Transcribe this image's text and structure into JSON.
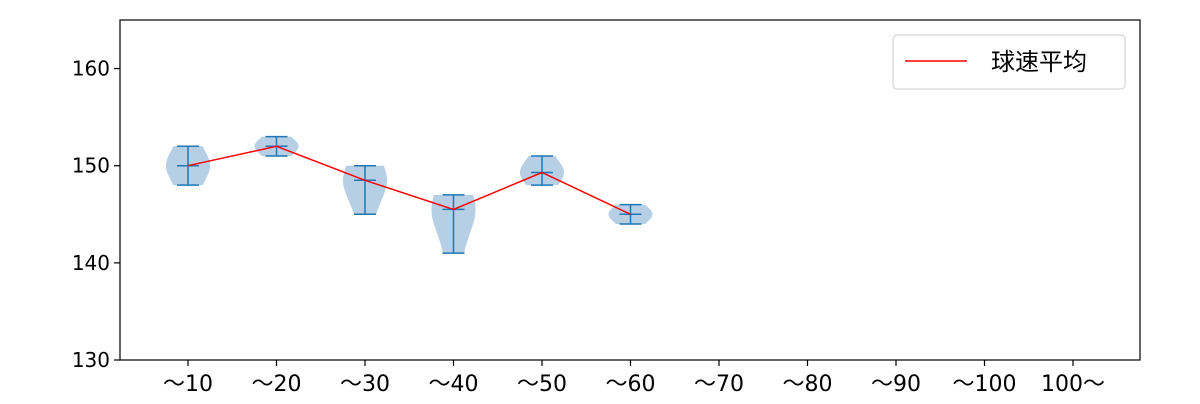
{
  "chart_data": {
    "type": "violin",
    "title": "",
    "xlabel": "",
    "ylabel": "",
    "categories": [
      "～10",
      "～20",
      "～30",
      "～40",
      "～50",
      "～60",
      "～70",
      "～80",
      "～90",
      "～100",
      "100～"
    ],
    "ylim": [
      130,
      165
    ],
    "yticks": [
      130,
      140,
      150,
      160
    ],
    "grid": false,
    "legend": {
      "position": "top-right",
      "entries": [
        "球速平均"
      ]
    },
    "colors": {
      "mean_line": "#ff0000",
      "violin_fill": "#9dbfdc",
      "whisker": "#1f77b4",
      "axis": "#000000"
    },
    "series": [
      {
        "name": "球速平均",
        "values": [
          150.0,
          152.0,
          148.5,
          145.5,
          149.3,
          145.0,
          null,
          null,
          null,
          null,
          null
        ]
      }
    ],
    "distributions": [
      {
        "category": "～10",
        "min": 148,
        "max": 152,
        "mean": 150.0
      },
      {
        "category": "～20",
        "min": 151,
        "max": 153,
        "mean": 152.0
      },
      {
        "category": "～30",
        "min": 145,
        "max": 150,
        "mean": 148.5
      },
      {
        "category": "～40",
        "min": 141,
        "max": 147,
        "mean": 145.5
      },
      {
        "category": "～50",
        "min": 148,
        "max": 151,
        "mean": 149.3
      },
      {
        "category": "～60",
        "min": 144,
        "max": 146,
        "mean": 145.0
      }
    ]
  }
}
